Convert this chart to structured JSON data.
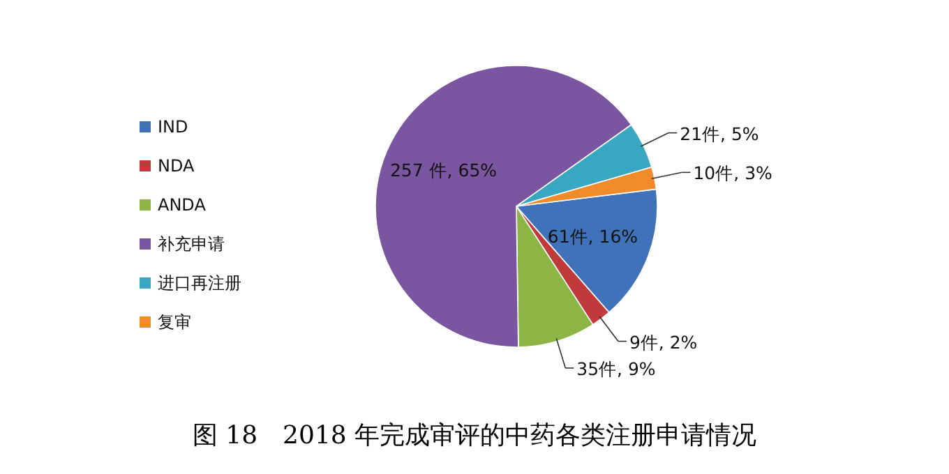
{
  "chart_data": {
    "type": "pie",
    "title": "图 18　2018 年完成审评的中药各类注册申请情况",
    "categories": [
      "IND",
      "NDA",
      "ANDA",
      "补充申请",
      "进口再注册",
      "复审"
    ],
    "values": [
      61,
      9,
      35,
      257,
      21,
      10
    ],
    "value_labels": [
      "61件, 16%",
      "9件, 2%",
      "35件, 9%",
      "257 件, 65%",
      "21件, 5%",
      "10件, 3%"
    ],
    "colors": [
      "#3f72b8",
      "#c0393b",
      "#8db545",
      "#7a55a0",
      "#3aa7c2",
      "#f08a2a"
    ],
    "legend": "left"
  }
}
